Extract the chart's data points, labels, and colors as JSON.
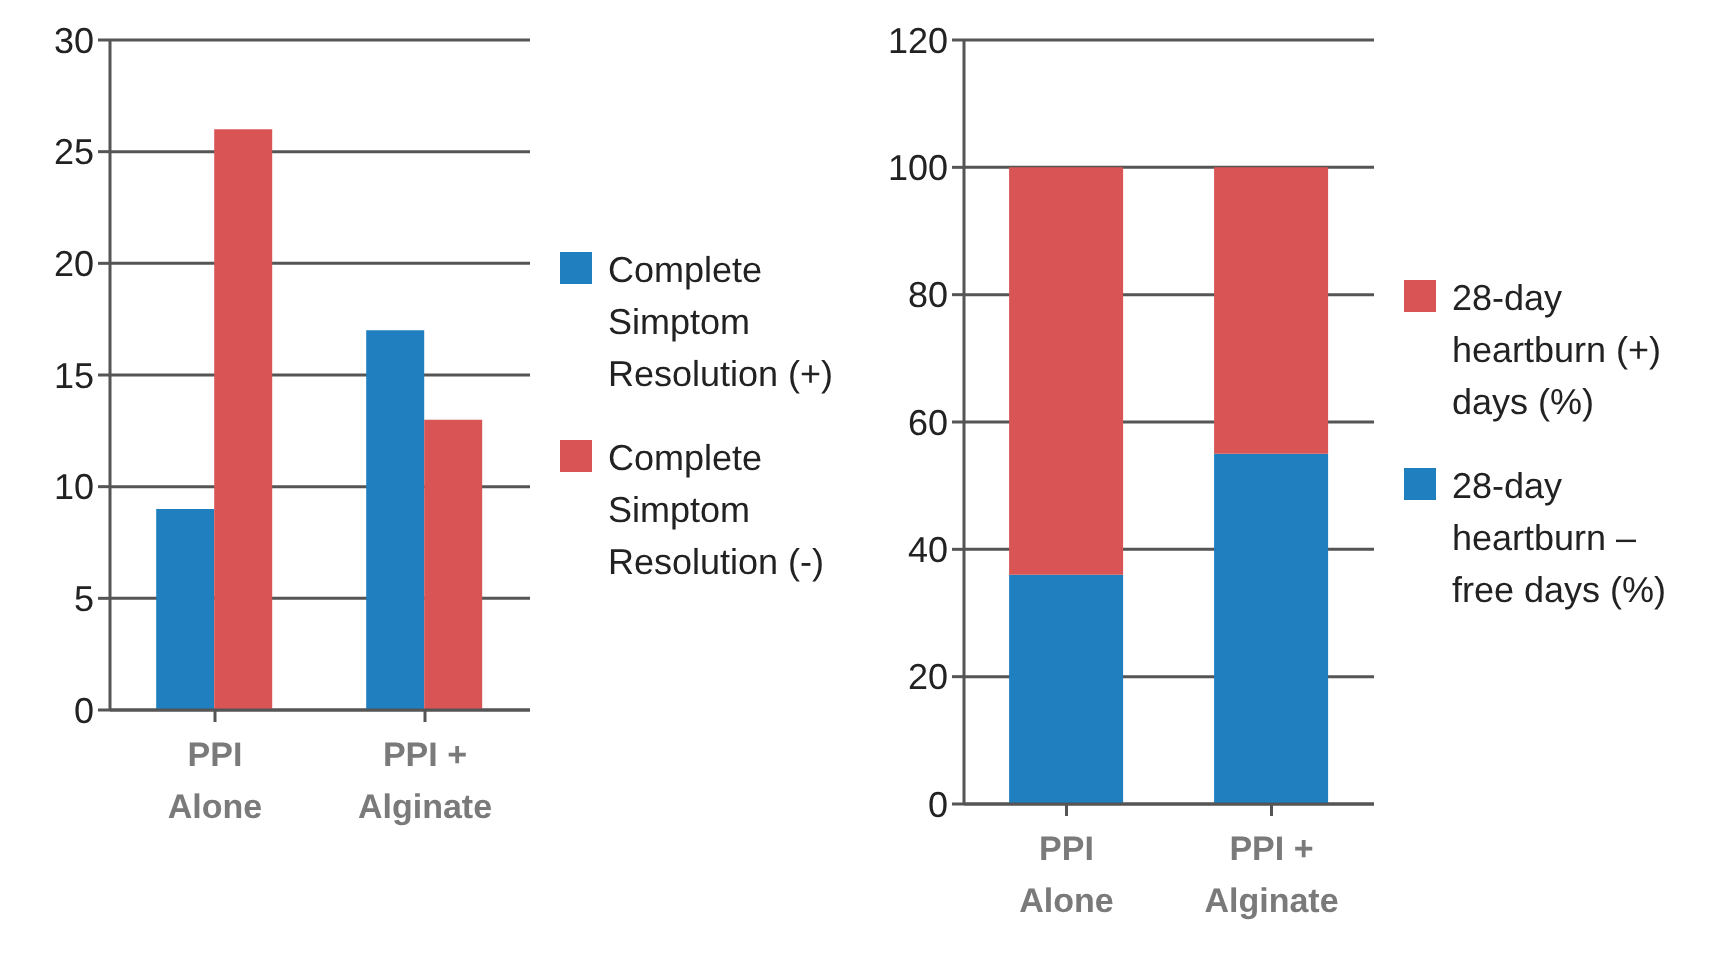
{
  "chart_data": [
    {
      "type": "bar",
      "categories": [
        "PPI Alone",
        "PPI + Alginate"
      ],
      "series": [
        {
          "name": "Complete Simptom Resolution (+)",
          "color": "#1f7fbf",
          "values": [
            9,
            17
          ]
        },
        {
          "name": "Complete Simptom Resolution (-)",
          "color": "#d95454",
          "values": [
            26,
            13
          ]
        }
      ],
      "ylim": [
        0,
        30
      ],
      "yticks": [
        0,
        5,
        10,
        15,
        20,
        25,
        30
      ],
      "grid": "y",
      "legend": "right"
    },
    {
      "type": "bar",
      "stacked": true,
      "categories": [
        "PPI Alone",
        "PPI + Alginate"
      ],
      "series": [
        {
          "name": "28-day heartburn – free days (%)",
          "color": "#1f7fbf",
          "values": [
            36,
            55
          ]
        },
        {
          "name": "28-day heartburn (+) days (%)",
          "color": "#d95454",
          "values": [
            64,
            45
          ]
        }
      ],
      "ylim": [
        0,
        120
      ],
      "yticks": [
        0,
        20,
        40,
        60,
        80,
        100,
        120
      ],
      "grid": "y",
      "legend": "right"
    }
  ]
}
